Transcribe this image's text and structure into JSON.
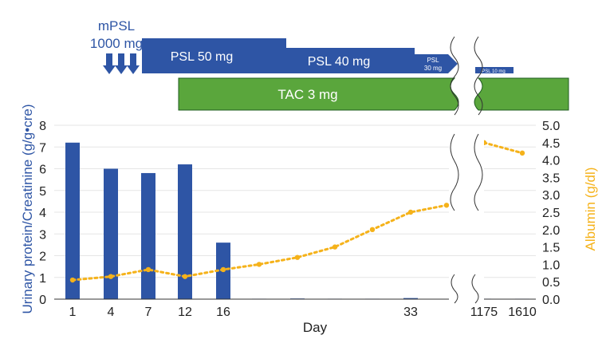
{
  "chart_data": {
    "type": "bar",
    "xlabel": "Day",
    "ylabel_left": "Urinary protein/Creatinine (g/g•cre)",
    "ylabel_right": "Albumin (g/dl)",
    "ylim_left": [
      0,
      8
    ],
    "yticks_left": [
      "0",
      "1",
      "2",
      "3",
      "4",
      "5",
      "6",
      "7",
      "8"
    ],
    "ylim_right": [
      0,
      5
    ],
    "yticks_right": [
      "0.0",
      "0.5",
      "1.0",
      "1.5",
      "2.0",
      "2.5",
      "3.0",
      "3.5",
      "4.0",
      "4.5",
      "5.0"
    ],
    "x_tick_labels": [
      "1",
      "4",
      "7",
      "12",
      "16",
      "33",
      "1175",
      "1610"
    ],
    "grid": true,
    "series": [
      {
        "kind": "bar",
        "axis": "left",
        "color": "#2e55a5",
        "points": [
          {
            "x": "1",
            "y": 7.2
          },
          {
            "x": "4",
            "y": 6.0
          },
          {
            "x": "7",
            "y": 5.8
          },
          {
            "x": "12",
            "y": 6.2
          },
          {
            "x": "16",
            "y": 2.6
          },
          {
            "x": "",
            "y": 0.02
          },
          {
            "x": "",
            "y": 0.03
          },
          {
            "x": "",
            "y": 0.02
          },
          {
            "x": "",
            "y": 0.02
          },
          {
            "x": "33",
            "y": 0.05
          },
          {
            "x": "1175",
            "y": 0.02
          },
          {
            "x": "1610",
            "y": 0.02
          }
        ]
      },
      {
        "kind": "line",
        "axis": "right",
        "style": "dotted",
        "color": "#f5b21a",
        "segments": [
          [
            {
              "x": "1",
              "y": 0.55
            },
            {
              "x": "4",
              "y": 0.65
            },
            {
              "x": "7",
              "y": 0.85
            },
            {
              "x": "12",
              "y": 0.65
            },
            {
              "x": "16",
              "y": 0.85
            },
            {
              "x": "",
              "y": 1.0
            },
            {
              "x": "",
              "y": 1.2
            },
            {
              "x": "",
              "y": 1.5
            },
            {
              "x": "",
              "y": 2.0
            },
            {
              "x": "33",
              "y": 2.5
            },
            {
              "x": "",
              "y": 2.7
            }
          ],
          [
            {
              "x": "1175",
              "y": 4.5
            },
            {
              "x": "1610",
              "y": 4.2
            }
          ]
        ]
      }
    ]
  },
  "treatment": {
    "mpsl": {
      "line1": "mPSL",
      "line2": "1000 mg",
      "pulses": 3
    },
    "psl_phases": [
      {
        "label": "PSL 50 mg"
      },
      {
        "label": "PSL 40 mg"
      },
      {
        "line1": "PSL",
        "line2": "30 mg"
      },
      {
        "label": "PSL 10 mg"
      }
    ],
    "tac": {
      "label": "TAC 3 mg"
    },
    "colors": {
      "psl": "#2e55a5",
      "tac": "#5aa63c",
      "tac_border": "#1f5c1f",
      "axis_text": "#2e55a5",
      "albumin_text": "#f5b21a"
    }
  }
}
